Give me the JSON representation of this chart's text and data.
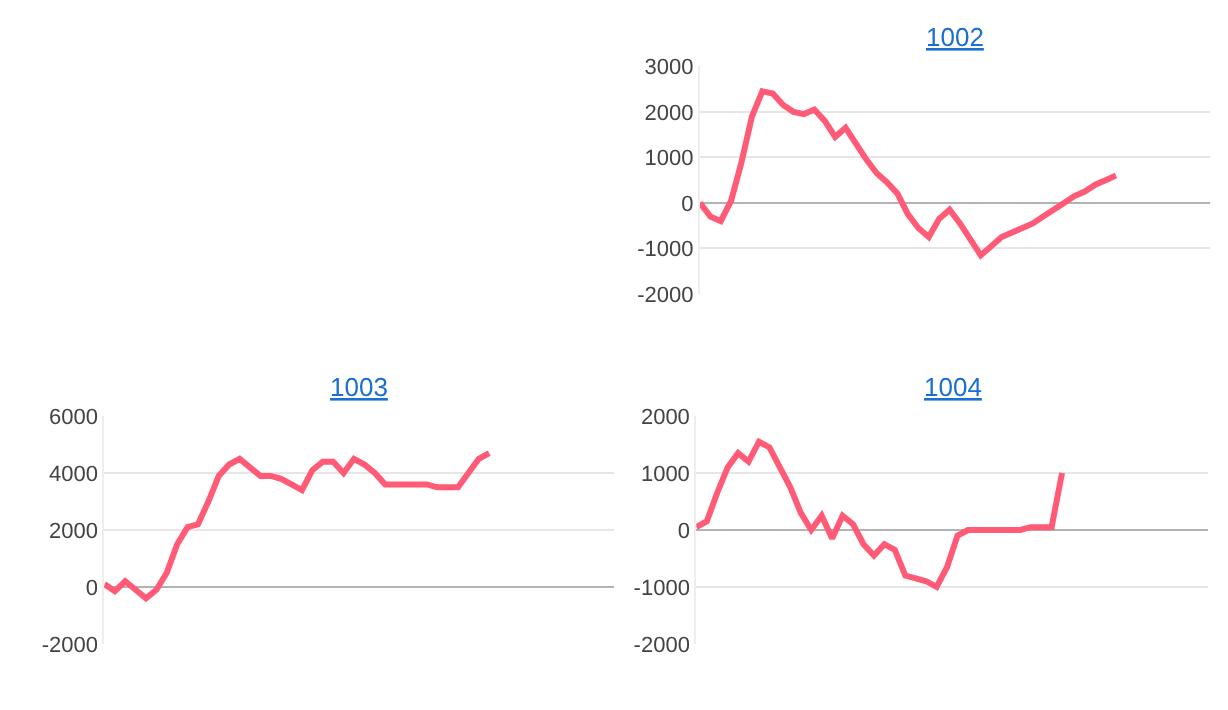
{
  "chart_data": [
    {
      "type": "line",
      "title": "1002",
      "categories": [
        null,
        null,
        null,
        null,
        null,
        null,
        null,
        null,
        null,
        null,
        null,
        null,
        null,
        null,
        null,
        null,
        null,
        null,
        null,
        null,
        null,
        null,
        null,
        null,
        null,
        null,
        null,
        null,
        null,
        null,
        null,
        null,
        null,
        null,
        null,
        null,
        null,
        null,
        null,
        null,
        null,
        null,
        null,
        null,
        null,
        null,
        null,
        null,
        null,
        null
      ],
      "series": [
        {
          "color": "#ff5a76",
          "values": [
            0,
            -300,
            -400,
            50,
            900,
            1900,
            2450,
            2400,
            2150,
            2000,
            1950,
            2050,
            1800,
            1450,
            1650,
            1300,
            950,
            650,
            450,
            200,
            -250,
            -550,
            -750,
            -350,
            -150,
            -450,
            -800,
            -1150,
            -950,
            -750,
            -650,
            -550,
            -450,
            -300,
            -150,
            0,
            150,
            250,
            400,
            500,
            600,
            null,
            null,
            null,
            null,
            null,
            null,
            null,
            null,
            null
          ]
        }
      ],
      "ylim": [
        -2000,
        3000
      ],
      "yticks": [
        -2000,
        -1000,
        0,
        1000,
        2000,
        3000
      ],
      "grid": "y",
      "tick_labels": "y",
      "marker": "none",
      "line_style": "solid"
    },
    {
      "type": "line",
      "title": "1003",
      "categories": [
        null,
        null,
        null,
        null,
        null,
        null,
        null,
        null,
        null,
        null,
        null,
        null,
        null,
        null,
        null,
        null,
        null,
        null,
        null,
        null,
        null,
        null,
        null,
        null,
        null,
        null,
        null,
        null,
        null,
        null,
        null,
        null,
        null,
        null,
        null,
        null,
        null,
        null,
        null,
        null,
        null,
        null,
        null,
        null,
        null,
        null,
        null,
        null,
        null,
        null
      ],
      "series": [
        {
          "color": "#ff5a76",
          "values": [
            100,
            -150,
            200,
            -100,
            -400,
            -100,
            500,
            1500,
            2100,
            2200,
            3000,
            3900,
            4300,
            4500,
            4200,
            3900,
            3900,
            3800,
            3600,
            3400,
            4100,
            4400,
            4400,
            4000,
            4500,
            4300,
            4000,
            3600,
            3600,
            3600,
            3600,
            3600,
            3500,
            3500,
            3500,
            4000,
            4500,
            4700,
            null,
            null,
            null,
            null,
            null,
            null,
            null,
            null,
            null,
            null,
            null,
            null
          ]
        }
      ],
      "ylim": [
        -2000,
        6000
      ],
      "yticks": [
        -2000,
        0,
        2000,
        4000,
        6000
      ],
      "grid": "y",
      "tick_labels": "y",
      "marker": "none",
      "line_style": "solid"
    },
    {
      "type": "line",
      "title": "1004",
      "categories": [
        null,
        null,
        null,
        null,
        null,
        null,
        null,
        null,
        null,
        null,
        null,
        null,
        null,
        null,
        null,
        null,
        null,
        null,
        null,
        null,
        null,
        null,
        null,
        null,
        null,
        null,
        null,
        null,
        null,
        null,
        null,
        null,
        null,
        null,
        null,
        null,
        null,
        null,
        null,
        null,
        null,
        null,
        null,
        null,
        null,
        null,
        null,
        null,
        null,
        null
      ],
      "series": [
        {
          "color": "#ff5a76",
          "values": [
            50,
            150,
            650,
            1100,
            1350,
            1200,
            1550,
            1450,
            1100,
            750,
            300,
            0,
            250,
            -150,
            250,
            100,
            -250,
            -450,
            -250,
            -350,
            -800,
            -850,
            -900,
            -1000,
            -650,
            -100,
            0,
            0,
            0,
            0,
            0,
            0,
            50,
            50,
            50,
            1000,
            null,
            null,
            null,
            null,
            null,
            null,
            null,
            null,
            null,
            null,
            null,
            null,
            null,
            null
          ]
        }
      ],
      "ylim": [
        -2000,
        2000
      ],
      "yticks": [
        -2000,
        -1000,
        0,
        1000,
        2000
      ],
      "grid": "y",
      "tick_labels": "y",
      "marker": "none",
      "line_style": "solid"
    }
  ]
}
